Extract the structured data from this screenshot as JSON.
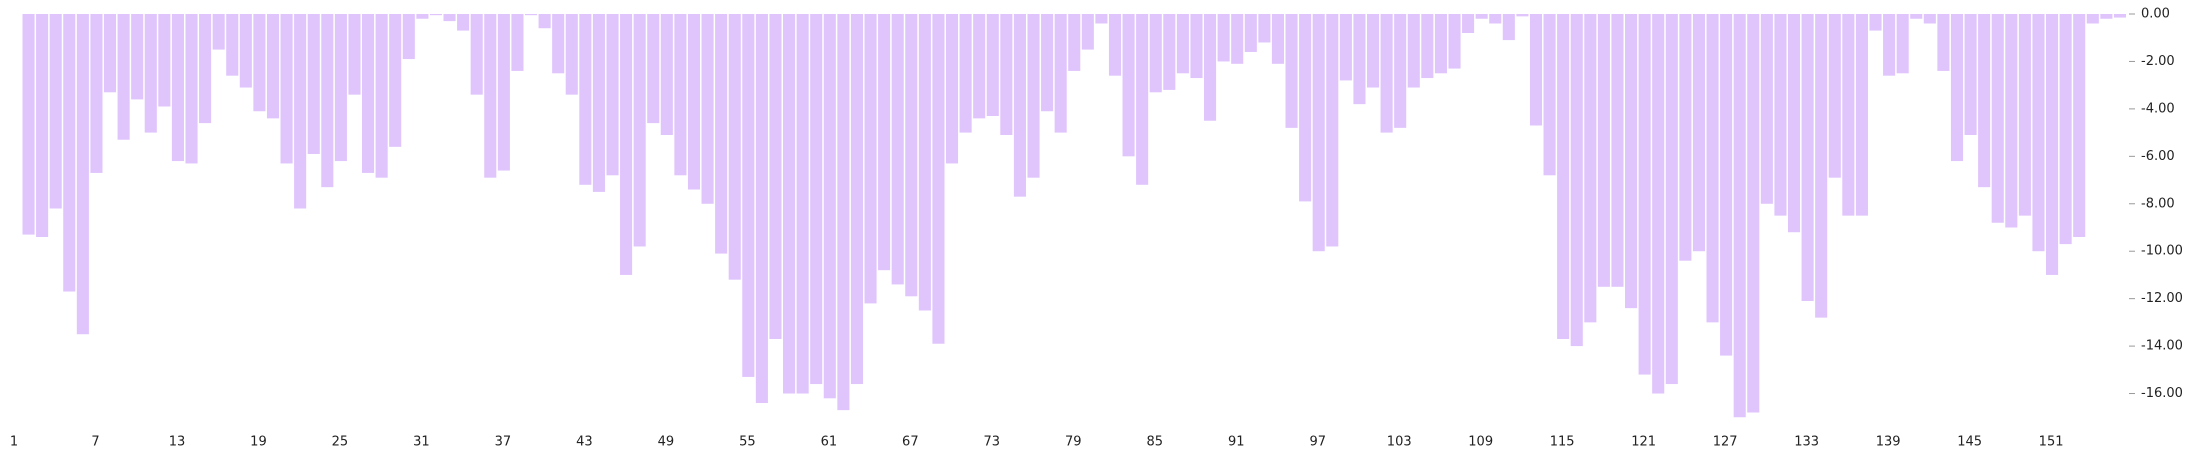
{
  "chart_data": {
    "type": "bar",
    "color": "#e0c4fc",
    "categories": [
      1,
      null,
      null,
      null,
      null,
      null,
      7,
      null,
      null,
      null,
      null,
      null,
      13,
      null,
      null,
      null,
      null,
      null,
      19,
      null,
      null,
      null,
      null,
      null,
      25,
      null,
      null,
      null,
      null,
      null,
      31,
      null,
      null,
      null,
      null,
      null,
      37,
      null,
      null,
      null,
      null,
      null,
      43,
      null,
      null,
      null,
      null,
      null,
      49,
      null,
      null,
      null,
      null,
      null,
      55,
      null,
      null,
      null,
      null,
      null,
      61,
      null,
      null,
      null,
      null,
      null,
      67,
      null,
      null,
      null,
      null,
      null,
      73,
      null,
      null,
      null,
      null,
      null,
      79,
      null,
      null,
      null,
      null,
      null,
      85,
      null,
      null,
      null,
      null,
      null,
      91,
      null,
      null,
      null,
      null,
      null,
      97,
      null,
      null,
      null,
      null,
      null,
      103,
      null,
      null,
      null,
      null,
      null,
      109,
      null,
      null,
      null,
      null,
      null,
      115,
      null,
      null,
      null,
      null,
      null,
      121,
      null,
      null,
      null,
      null,
      null,
      127,
      null,
      null,
      null,
      null,
      null,
      133,
      null,
      null,
      null,
      null,
      null,
      139,
      null,
      null,
      null,
      null,
      null,
      145,
      null,
      null,
      null,
      null,
      null,
      151,
      null,
      null,
      null,
      null
    ],
    "values": [
      -9.3,
      -9.4,
      -8.2,
      -11.7,
      -13.5,
      -6.7,
      -3.3,
      -5.3,
      -3.6,
      -5.0,
      -3.9,
      -6.2,
      -6.3,
      -4.6,
      -1.5,
      -2.6,
      -3.1,
      -4.1,
      -4.4,
      -6.3,
      -8.2,
      -5.9,
      -7.3,
      -6.2,
      -3.4,
      -6.7,
      -6.9,
      -5.6,
      -1.9,
      -0.2,
      -0.05,
      -0.3,
      -0.7,
      -3.4,
      -6.9,
      -6.6,
      -2.4,
      -0.05,
      -0.6,
      -2.5,
      -3.4,
      -7.2,
      -7.5,
      -6.8,
      -11.0,
      -9.8,
      -4.6,
      -5.1,
      -6.8,
      -7.4,
      -8.0,
      -10.1,
      -11.2,
      -15.3,
      -16.4,
      -13.7,
      -16.0,
      -16.0,
      -15.6,
      -16.2,
      -16.7,
      -15.6,
      -12.2,
      -10.8,
      -11.4,
      -11.9,
      -12.5,
      -13.9,
      -6.3,
      -5.0,
      -4.4,
      -4.3,
      -5.1,
      -7.7,
      -6.9,
      -4.1,
      -5.0,
      -2.4,
      -1.5,
      -0.4,
      -2.6,
      -6.0,
      -7.2,
      -3.3,
      -3.2,
      -2.5,
      -2.7,
      -4.5,
      -2.0,
      -2.1,
      -1.6,
      -1.2,
      -2.1,
      -4.8,
      -7.9,
      -10.0,
      -9.8,
      -2.8,
      -3.8,
      -3.1,
      -5.0,
      -4.8,
      -3.1,
      -2.7,
      -2.5,
      -2.3,
      -0.8,
      -0.2,
      -0.4,
      -1.1,
      -0.1,
      -4.7,
      -6.8,
      -13.7,
      -14.0,
      -13.0,
      -11.5,
      -11.5,
      -12.4,
      -15.2,
      -16.0,
      -15.6,
      -10.4,
      -10.0,
      -13.0,
      -14.4,
      -17.0,
      -16.8,
      -8.0,
      -8.5,
      -9.2,
      -12.1,
      -12.8,
      -6.9,
      -8.5,
      -8.5,
      -0.7,
      -2.6,
      -2.5,
      -0.2,
      -0.4,
      -2.4,
      -6.2,
      -5.1,
      -7.3,
      -8.8,
      -9.0,
      -8.5,
      -10.0,
      -11.0,
      -9.7,
      -9.4,
      -0.4,
      -0.2,
      -0.15
    ],
    "ylim": [
      -17.2,
      0
    ],
    "yticks": [
      {
        "value": 0,
        "label": "0.00"
      },
      {
        "value": -2,
        "label": "-2.00"
      },
      {
        "value": -4,
        "label": "-4.00"
      },
      {
        "value": -6,
        "label": "-6.00"
      },
      {
        "value": -8,
        "label": "-8.00"
      },
      {
        "value": -10,
        "label": "-10.00"
      },
      {
        "value": -12,
        "label": "-12.00"
      },
      {
        "value": -14,
        "label": "-14.00"
      },
      {
        "value": -16,
        "label": "-16.00"
      }
    ],
    "grid": false
  }
}
